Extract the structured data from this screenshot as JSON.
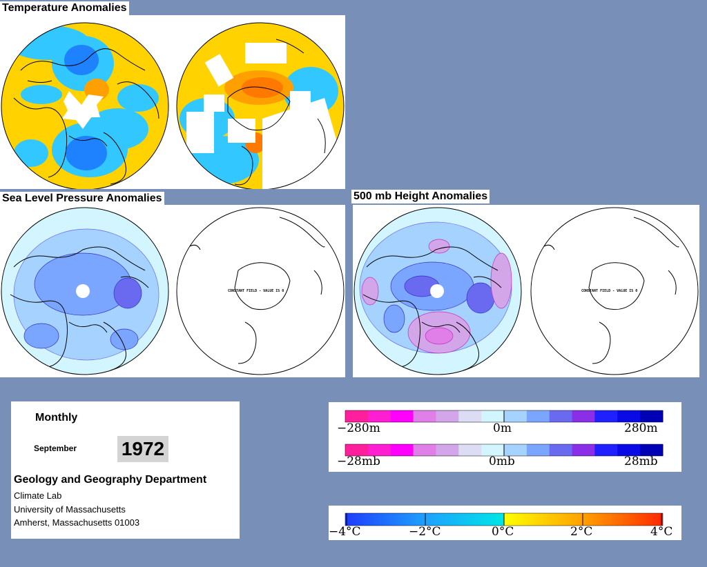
{
  "sections": {
    "temperature": {
      "title": "Temperature Anomalies"
    },
    "slp": {
      "title": "Sea Level Pressure Anomalies",
      "south_caption": "CONSTANT FIELD - VALUE IS 0"
    },
    "height500": {
      "title": "500 mb Height Anomalies",
      "south_caption": "CONSTANT FIELD - VALUE IS 0"
    }
  },
  "info": {
    "period": "Monthly",
    "month": "September",
    "year": "1972",
    "department": "Geology and Geography Department",
    "lab": "Climate Lab",
    "university": "University of Massachusetts",
    "address": "Amherst, Massachusetts 01003"
  },
  "legends": {
    "height": {
      "left": "−280m",
      "center": "0m",
      "right": "280m"
    },
    "pressure": {
      "left": "−28mb",
      "center": "0mb",
      "right": "28mb"
    },
    "temperature": {
      "ticks": [
        "−4°C",
        "−2°C",
        "0°C",
        "2°C",
        "4°C"
      ]
    }
  },
  "colors": {
    "background": "#7890b8",
    "height_pressure_scale": [
      "#ff1e9b",
      "#ff1ed2",
      "#ff00ff",
      "#e07fe8",
      "#d2a6e8",
      "#dcdcf5",
      "#d2f5ff",
      "#a6d2ff",
      "#7aa6ff",
      "#6a6af0",
      "#8a2ee8",
      "#2020ff",
      "#0a0ae6",
      "#0000b4"
    ],
    "temperature_scale": [
      "#1e3cff",
      "#1e82ff",
      "#1ea0ff",
      "#32c8ff",
      "#00dcdc",
      "#ffff00",
      "#ffd200",
      "#ffa000",
      "#ff7800",
      "#ff3c00",
      "#e61400"
    ]
  }
}
